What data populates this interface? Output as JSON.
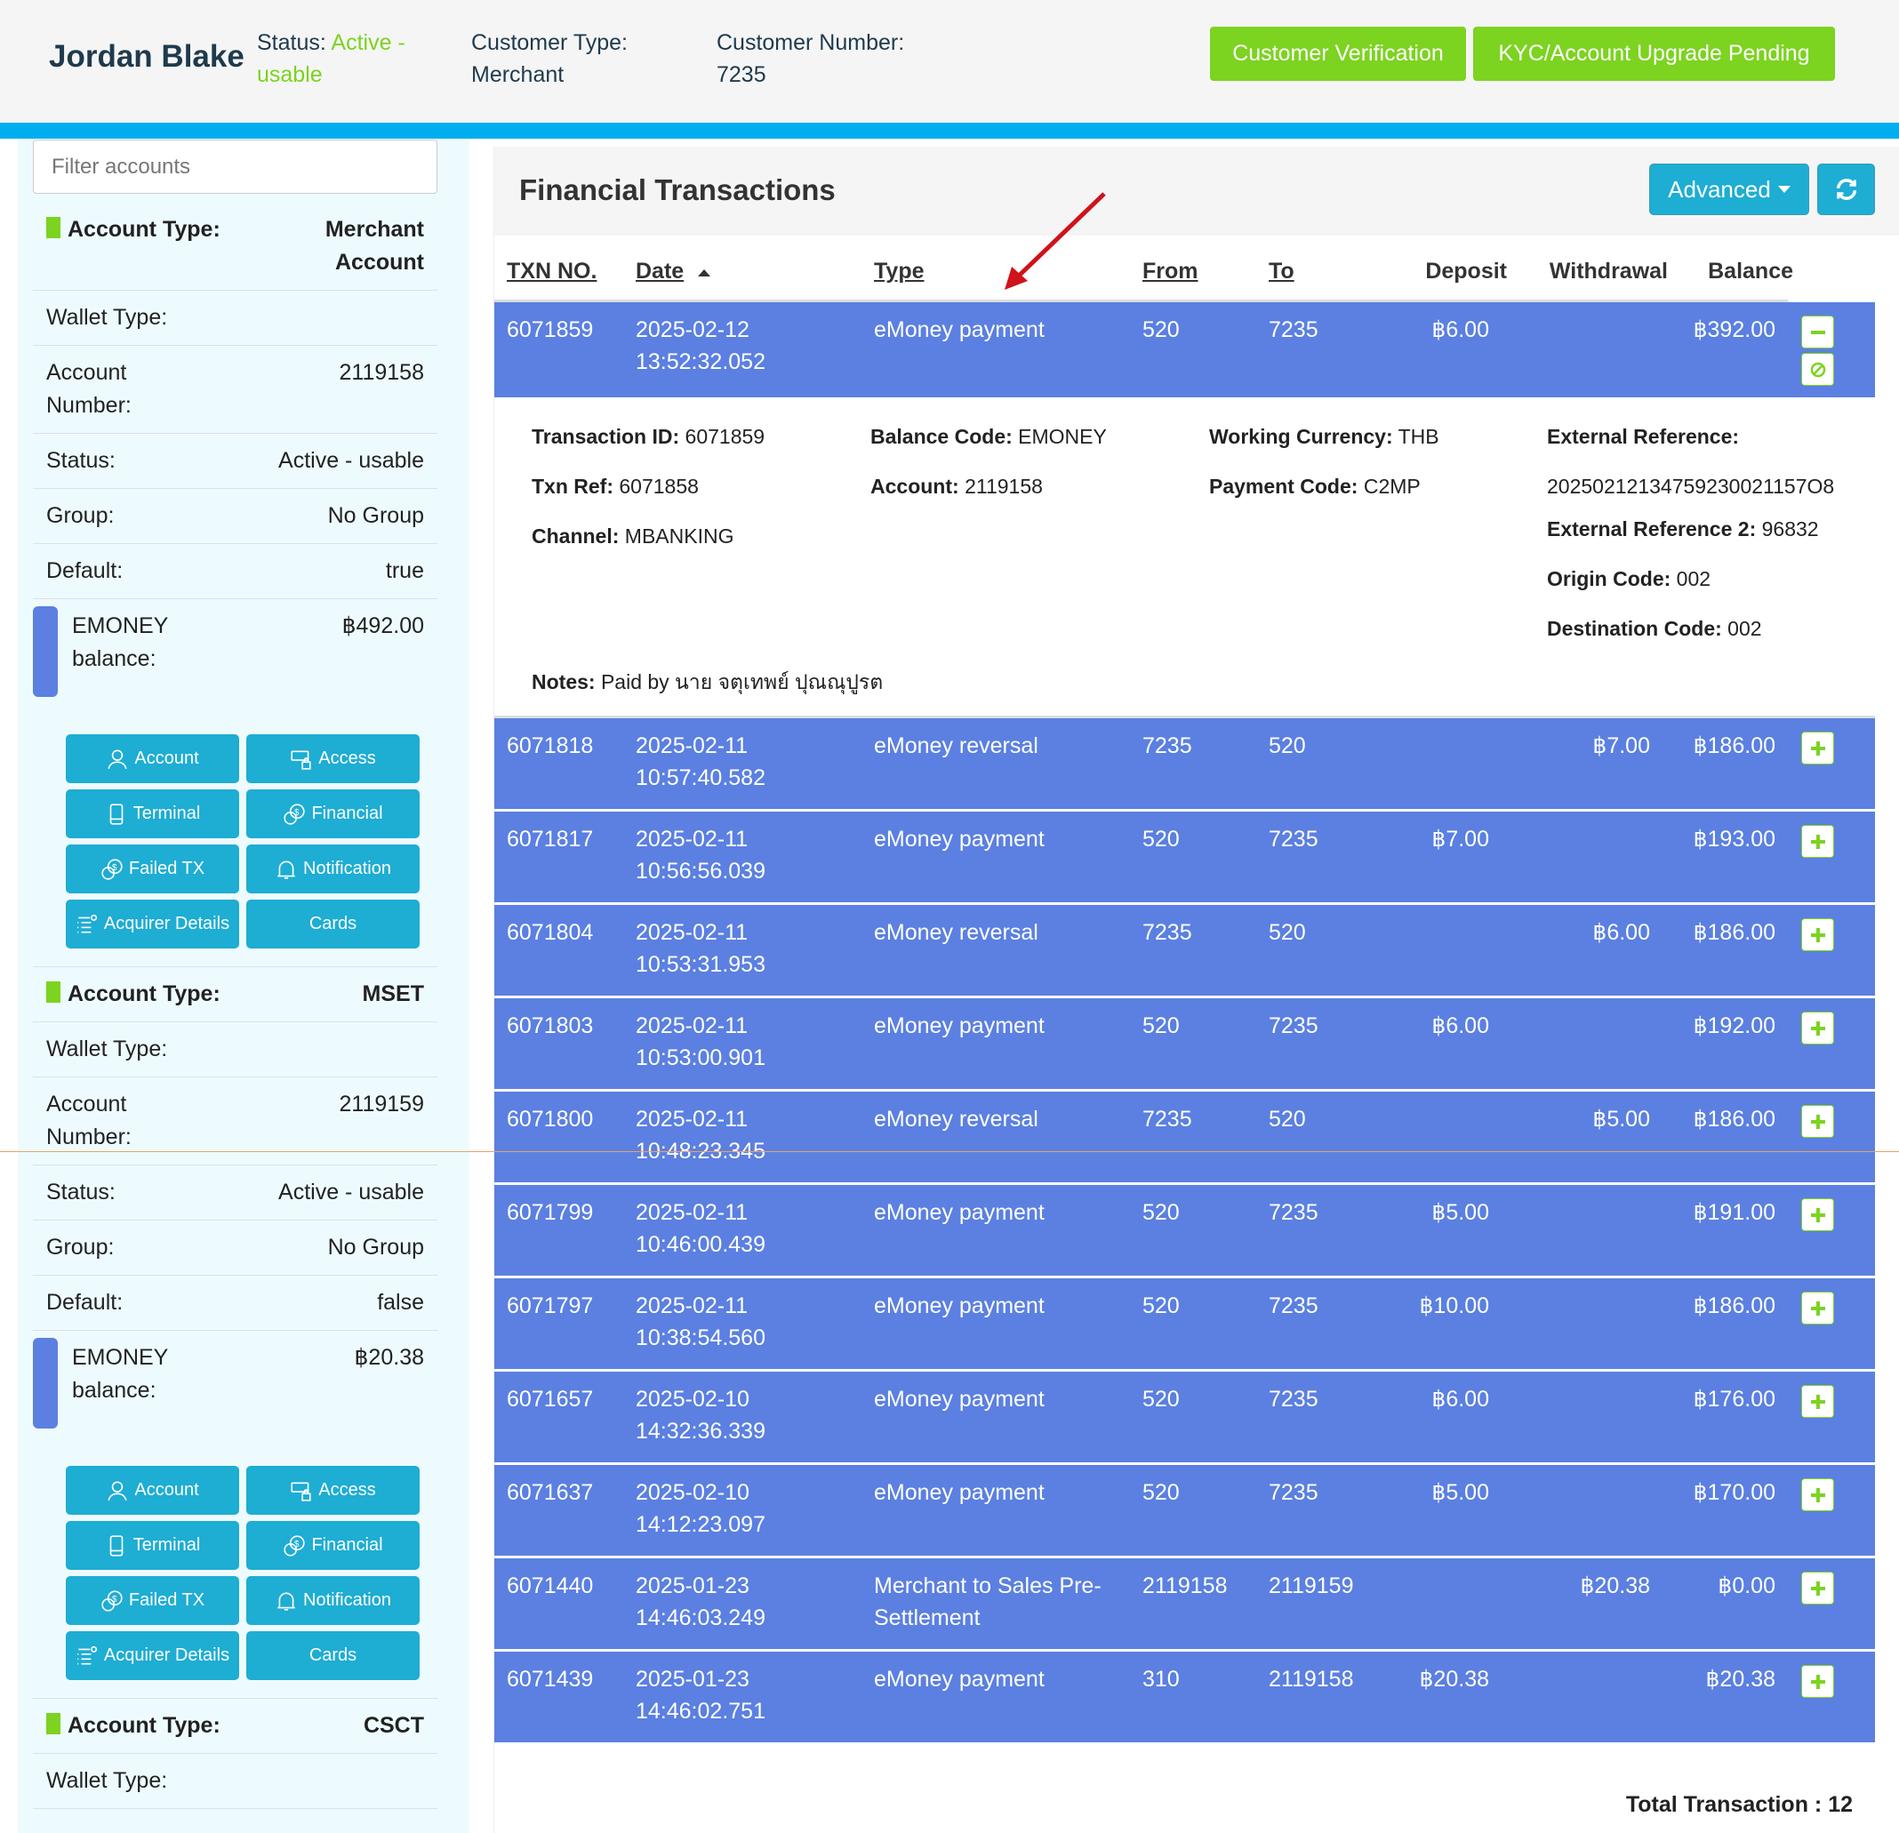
{
  "header": {
    "name": "Jordan Blake",
    "status_label": "Status:",
    "status_value": "Active - usable",
    "customer_type_label": "Customer Type:",
    "customer_type": "Merchant",
    "customer_number_label": "Customer Number:",
    "customer_number": "7235",
    "btn_verification": "Customer Verification",
    "btn_kyc": "KYC/Account Upgrade Pending"
  },
  "sidebar": {
    "filter_placeholder": "Filter accounts",
    "labels": {
      "type": "Account Type:",
      "wallet": "Wallet Type:",
      "number": "Account Number:",
      "status": "Status:",
      "group": "Group:",
      "default": "Default:",
      "balance": "EMONEY balance:"
    },
    "buttons": [
      "Account",
      "Access",
      "Terminal",
      "Financial",
      "Failed TX",
      "Notification",
      "Acquirer Details",
      "Cards"
    ],
    "accounts": [
      {
        "type": "Merchant Account",
        "wallet": "",
        "number": "2119158",
        "status": "Active - usable",
        "group": "No Group",
        "default": "true",
        "balance": "฿492.00"
      },
      {
        "type": "MSET",
        "wallet": "",
        "number": "2119159",
        "status": "Active - usable",
        "group": "No Group",
        "default": "false",
        "balance": "฿20.38"
      },
      {
        "type": "CSCT",
        "wallet": ""
      }
    ]
  },
  "main": {
    "title": "Financial Transactions",
    "advanced": "Advanced",
    "columns": [
      "TXN NO.",
      "Date",
      "Type",
      "From",
      "To",
      "Deposit",
      "Withdrawal",
      "Balance"
    ],
    "rows": [
      {
        "txn": "6071859",
        "date": "2025-02-12",
        "time": "13:52:32.052",
        "type": "eMoney payment",
        "from": "520",
        "to": "7235",
        "deposit": "฿6.00",
        "withdrawal": "",
        "balance": "฿392.00",
        "expanded": true
      },
      {
        "txn": "6071818",
        "date": "2025-02-11",
        "time": "10:57:40.582",
        "type": "eMoney reversal",
        "from": "7235",
        "to": "520",
        "deposit": "",
        "withdrawal": "฿7.00",
        "balance": "฿186.00"
      },
      {
        "txn": "6071817",
        "date": "2025-02-11",
        "time": "10:56:56.039",
        "type": "eMoney payment",
        "from": "520",
        "to": "7235",
        "deposit": "฿7.00",
        "withdrawal": "",
        "balance": "฿193.00"
      },
      {
        "txn": "6071804",
        "date": "2025-02-11",
        "time": "10:53:31.953",
        "type": "eMoney reversal",
        "from": "7235",
        "to": "520",
        "deposit": "",
        "withdrawal": "฿6.00",
        "balance": "฿186.00"
      },
      {
        "txn": "6071803",
        "date": "2025-02-11",
        "time": "10:53:00.901",
        "type": "eMoney payment",
        "from": "520",
        "to": "7235",
        "deposit": "฿6.00",
        "withdrawal": "",
        "balance": "฿192.00"
      },
      {
        "txn": "6071800",
        "date": "2025-02-11",
        "time": "10:48:23.345",
        "type": "eMoney reversal",
        "from": "7235",
        "to": "520",
        "deposit": "",
        "withdrawal": "฿5.00",
        "balance": "฿186.00"
      },
      {
        "txn": "6071799",
        "date": "2025-02-11",
        "time": "10:46:00.439",
        "type": "eMoney payment",
        "from": "520",
        "to": "7235",
        "deposit": "฿5.00",
        "withdrawal": "",
        "balance": "฿191.00"
      },
      {
        "txn": "6071797",
        "date": "2025-02-11",
        "time": "10:38:54.560",
        "type": "eMoney payment",
        "from": "520",
        "to": "7235",
        "deposit": "฿10.00",
        "withdrawal": "",
        "balance": "฿186.00"
      },
      {
        "txn": "6071657",
        "date": "2025-02-10",
        "time": "14:32:36.339",
        "type": "eMoney payment",
        "from": "520",
        "to": "7235",
        "deposit": "฿6.00",
        "withdrawal": "",
        "balance": "฿176.00"
      },
      {
        "txn": "6071637",
        "date": "2025-02-10",
        "time": "14:12:23.097",
        "type": "eMoney payment",
        "from": "520",
        "to": "7235",
        "deposit": "฿5.00",
        "withdrawal": "",
        "balance": "฿170.00"
      },
      {
        "txn": "6071440",
        "date": "2025-01-23",
        "time": "14:46:03.249",
        "type": "Merchant to Sales Pre-Settlement",
        "from": "2119158",
        "to": "2119159",
        "deposit": "",
        "withdrawal": "฿20.38",
        "balance": "฿0.00"
      },
      {
        "txn": "6071439",
        "date": "2025-01-23",
        "time": "14:46:02.751",
        "type": "eMoney payment",
        "from": "310",
        "to": "2119158",
        "deposit": "฿20.38",
        "withdrawal": "",
        "balance": "฿20.38"
      }
    ],
    "detail": {
      "transaction_id_label": "Transaction ID:",
      "transaction_id": "6071859",
      "balance_code_label": "Balance Code:",
      "balance_code": "EMONEY",
      "working_currency_label": "Working Currency:",
      "working_currency": "THB",
      "external_reference_label": "External Reference:",
      "external_reference": "20250212134759230021157O8",
      "txn_ref_label": "Txn Ref:",
      "txn_ref": "6071858",
      "account_label": "Account:",
      "account": "2119158",
      "payment_code_label": "Payment Code:",
      "payment_code": "C2MP",
      "channel_label": "Channel:",
      "channel": "MBANKING",
      "external_reference_2_label": "External Reference 2:",
      "external_reference_2": "96832",
      "origin_code_label": "Origin Code:",
      "origin_code": "002",
      "destination_code_label": "Destination Code:",
      "destination_code": "002",
      "notes_label": "Notes:",
      "notes": "Paid by นาย จตุเทพย์ ปุณณุปูรต"
    },
    "total": "Total Transaction : 12"
  },
  "colors": {
    "accent_green": "#7cd320",
    "accent_blue": "#1eadd3",
    "row_blue": "#5b80e1"
  }
}
